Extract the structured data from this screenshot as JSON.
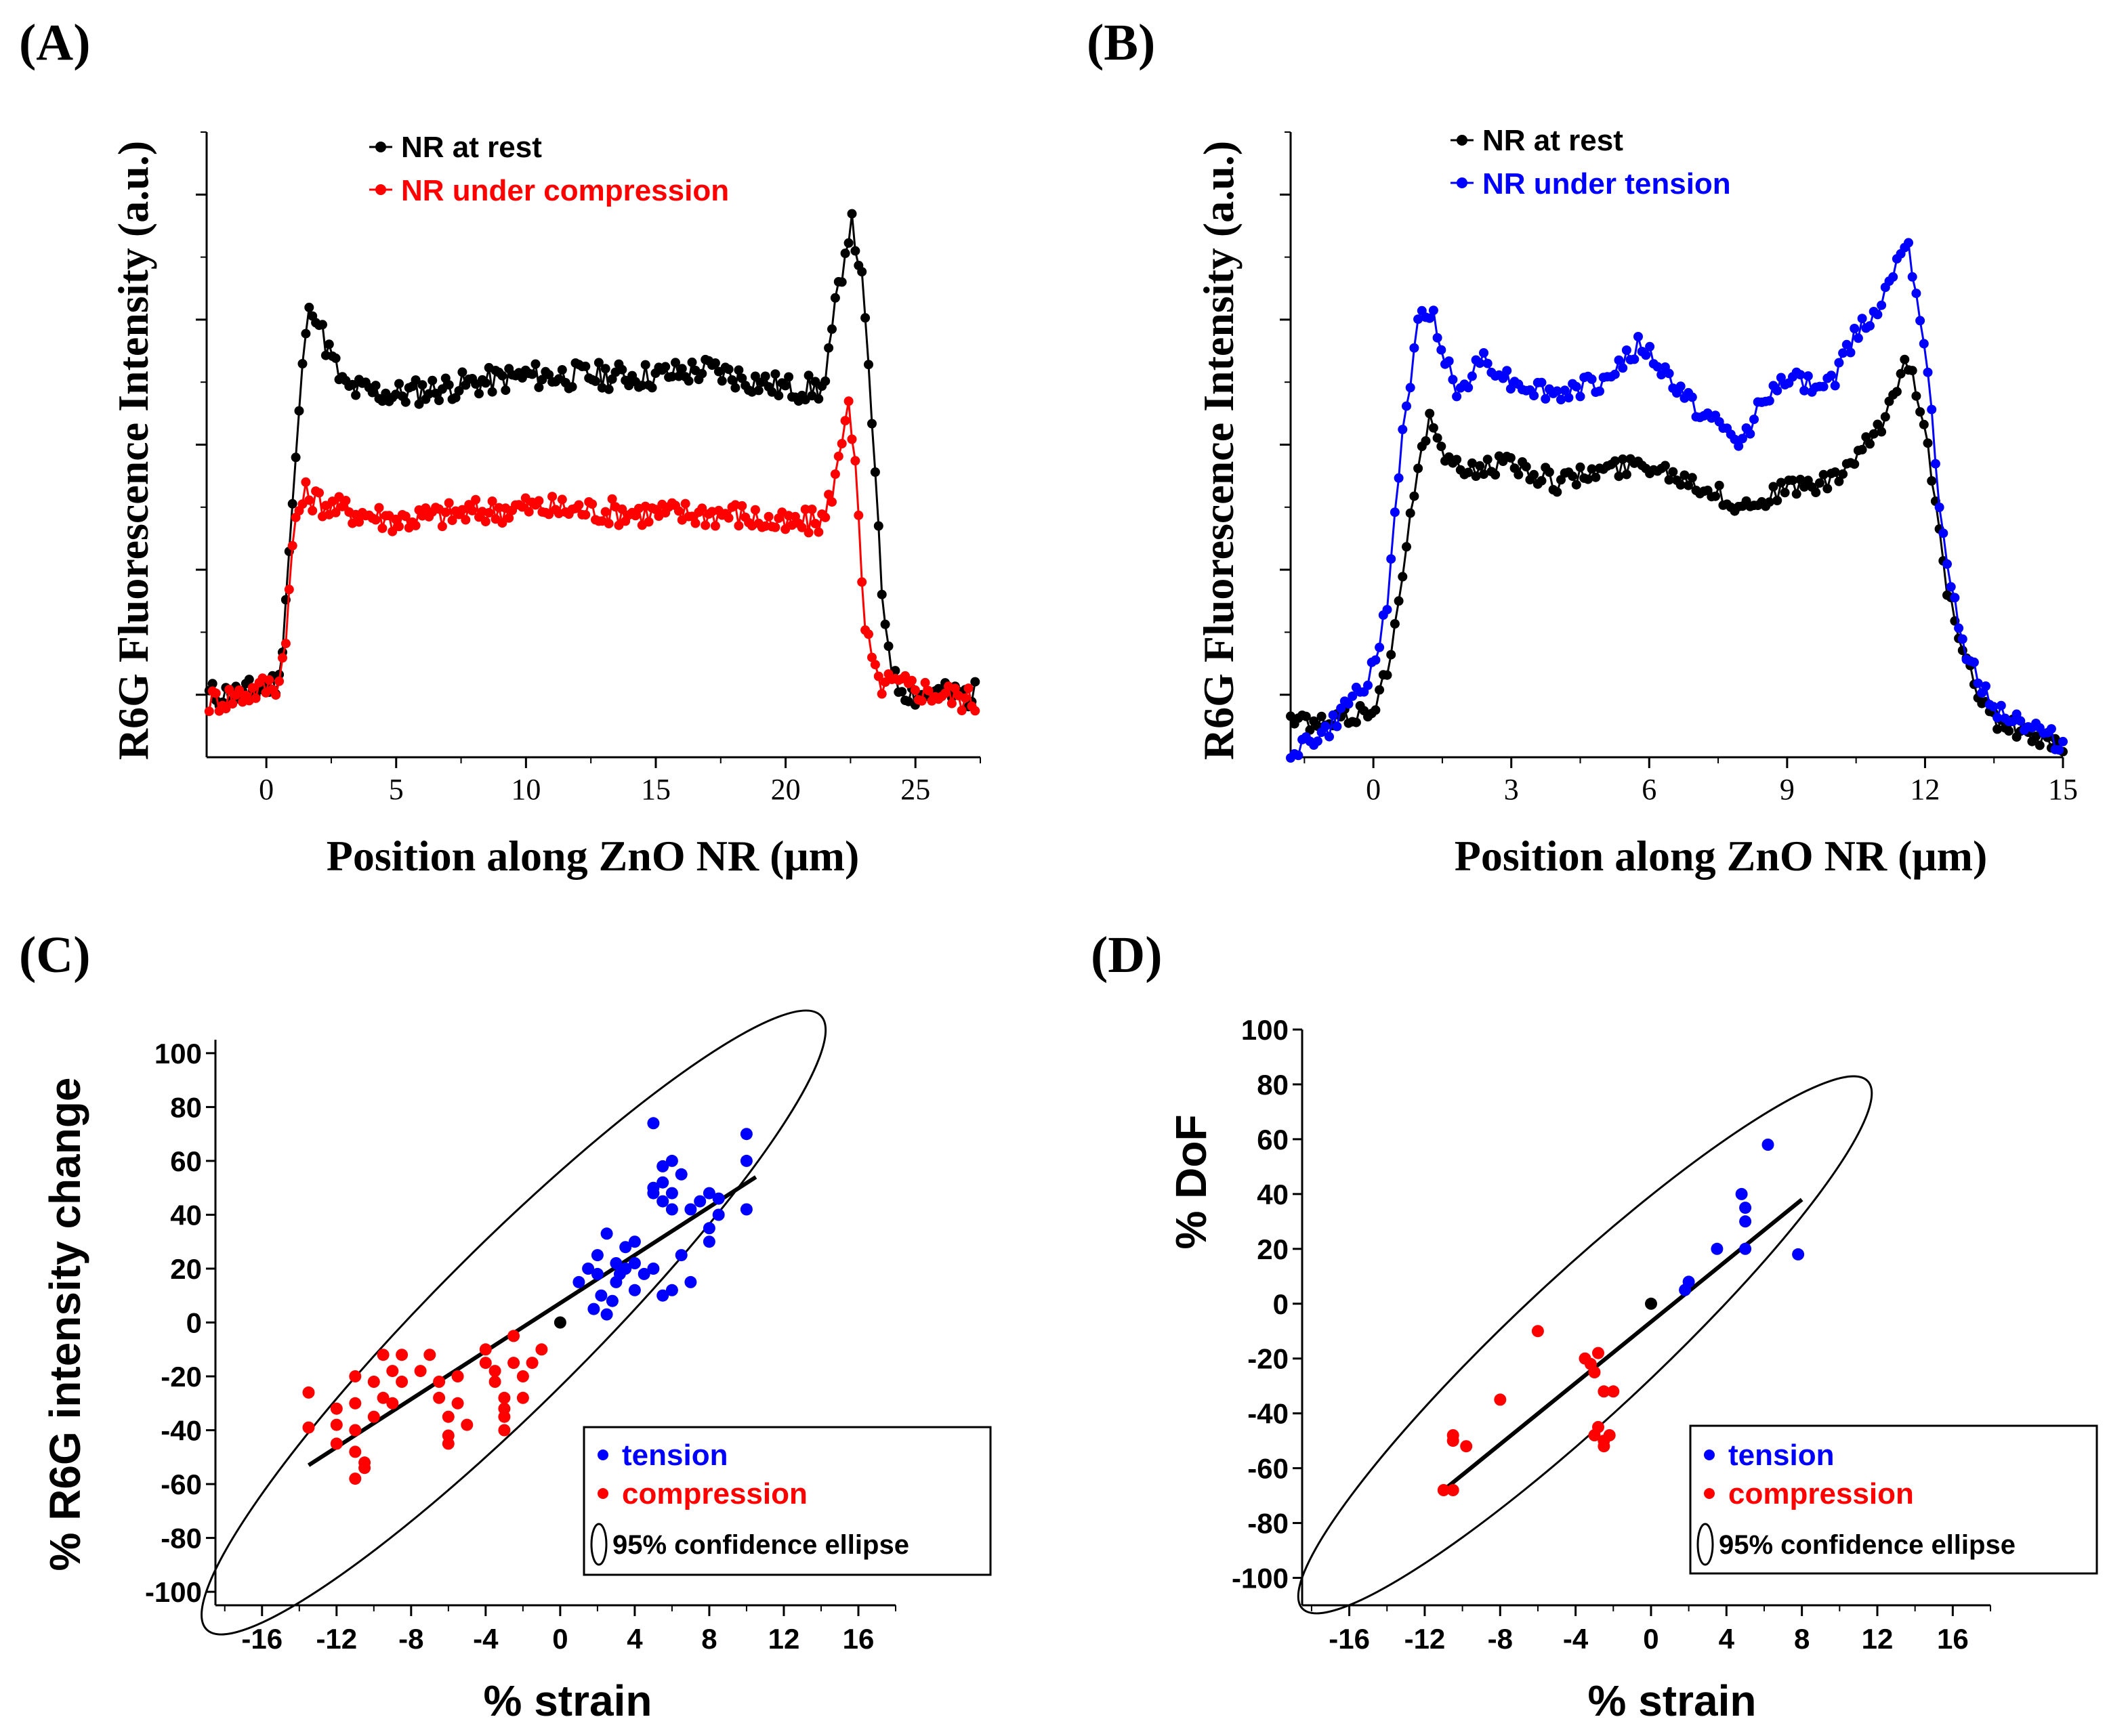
{
  "colors": {
    "black": "#000000",
    "red": "#ff0000",
    "blue": "#0000ff"
  },
  "chart_data": [
    {
      "panel": "(A)",
      "type": "line",
      "title": "",
      "xlabel": "Position along ZnO NR (μm)",
      "ylabel": "R6G Fluorescence Intensity (a.u.)",
      "xlim": [
        -2.3,
        27.5
      ],
      "ylim": [
        -0.5,
        4.5
      ],
      "xticks": [
        "0",
        "5",
        "10",
        "15",
        "20",
        "25"
      ],
      "legend_position": "top-left",
      "series": [
        {
          "name": "NR at rest",
          "color": "#000000",
          "anchors": [
            [
              -2.2,
              0.0
            ],
            [
              -1,
              0.0
            ],
            [
              0.5,
              0.1
            ],
            [
              1.0,
              1.5
            ],
            [
              1.5,
              2.9
            ],
            [
              1.8,
              3.15
            ],
            [
              2.2,
              2.85
            ],
            [
              3,
              2.45
            ],
            [
              5,
              2.4
            ],
            [
              10,
              2.55
            ],
            [
              15,
              2.55
            ],
            [
              17,
              2.6
            ],
            [
              20,
              2.45
            ],
            [
              21.5,
              2.45
            ],
            [
              22.0,
              3.2
            ],
            [
              22.5,
              3.8
            ],
            [
              22.9,
              3.4
            ],
            [
              23.3,
              2.3
            ],
            [
              23.7,
              0.8
            ],
            [
              24.2,
              0.1
            ],
            [
              25,
              0.0
            ],
            [
              27.3,
              0.0
            ]
          ]
        },
        {
          "name": "NR under compression",
          "color": "#ff0000",
          "anchors": [
            [
              -2.2,
              -0.05
            ],
            [
              -1,
              0.0
            ],
            [
              0.5,
              0.1
            ],
            [
              0.8,
              0.6
            ],
            [
              1.1,
              1.4
            ],
            [
              1.5,
              1.6
            ],
            [
              2.5,
              1.5
            ],
            [
              5,
              1.4
            ],
            [
              10,
              1.5
            ],
            [
              15,
              1.45
            ],
            [
              18,
              1.45
            ],
            [
              20,
              1.35
            ],
            [
              21.5,
              1.4
            ],
            [
              22.1,
              1.9
            ],
            [
              22.4,
              2.45
            ],
            [
              22.7,
              1.8
            ],
            [
              23.0,
              0.6
            ],
            [
              23.5,
              0.1
            ],
            [
              25,
              0.05
            ],
            [
              27.3,
              -0.05
            ]
          ]
        }
      ]
    },
    {
      "panel": "(B)",
      "type": "line",
      "title": "",
      "xlabel": "Position along ZnO NR (μm)",
      "ylabel": "R6G Fluorescence Intensity (a.u.)",
      "xlim": [
        -1.8,
        15
      ],
      "ylim": [
        -0.5,
        4.5
      ],
      "xticks": [
        "0",
        "3",
        "6",
        "9",
        "12",
        "15"
      ],
      "legend_position": "top-left",
      "series": [
        {
          "name": "NR at rest",
          "color": "#000000",
          "anchors": [
            [
              -1.8,
              -0.2
            ],
            [
              -1,
              -0.25
            ],
            [
              0,
              -0.1
            ],
            [
              0.4,
              0.3
            ],
            [
              0.8,
              1.5
            ],
            [
              1.2,
              2.2
            ],
            [
              1.7,
              1.8
            ],
            [
              3,
              1.85
            ],
            [
              4,
              1.7
            ],
            [
              5,
              1.8
            ],
            [
              6,
              1.85
            ],
            [
              7,
              1.7
            ],
            [
              8,
              1.5
            ],
            [
              9,
              1.65
            ],
            [
              10,
              1.7
            ],
            [
              11,
              2.1
            ],
            [
              11.6,
              2.7
            ],
            [
              12.0,
              2.2
            ],
            [
              12.4,
              1.0
            ],
            [
              12.8,
              0.3
            ],
            [
              13.5,
              -0.2
            ],
            [
              15,
              -0.45
            ]
          ]
        },
        {
          "name": "NR under tension",
          "color": "#0000ff",
          "anchors": [
            [
              -1.8,
              -0.45
            ],
            [
              -1,
              -0.3
            ],
            [
              0,
              0.2
            ],
            [
              0.3,
              0.7
            ],
            [
              0.6,
              2.0
            ],
            [
              1.0,
              3.0
            ],
            [
              1.3,
              3.05
            ],
            [
              1.8,
              2.4
            ],
            [
              2.4,
              2.7
            ],
            [
              3,
              2.5
            ],
            [
              4,
              2.4
            ],
            [
              5,
              2.5
            ],
            [
              5.8,
              2.8
            ],
            [
              6.5,
              2.5
            ],
            [
              7,
              2.3
            ],
            [
              8,
              2.0
            ],
            [
              8.5,
              2.4
            ],
            [
              9,
              2.5
            ],
            [
              10,
              2.5
            ],
            [
              10.5,
              2.9
            ],
            [
              11,
              3.1
            ],
            [
              11.6,
              3.7
            ],
            [
              12.0,
              2.8
            ],
            [
              12.4,
              1.2
            ],
            [
              12.8,
              0.4
            ],
            [
              13.5,
              -0.1
            ],
            [
              15,
              -0.4
            ]
          ]
        }
      ]
    },
    {
      "panel": "(C)",
      "type": "scatter",
      "title": "",
      "xlabel": "% strain",
      "ylabel": "% R6G intensity change",
      "xlim": [
        -18.5,
        18
      ],
      "ylim": [
        -105,
        105
      ],
      "xticks": [
        "-16",
        "-12",
        "-8",
        "-4",
        "0",
        "4",
        "8",
        "12",
        "16"
      ],
      "yticks": [
        "100",
        "80",
        "60",
        "40",
        "20",
        "0",
        "-20",
        "-40",
        "-60",
        "-80",
        "-100"
      ],
      "legend_position": "bottom-right",
      "legend": [
        "tension",
        "compression",
        "95% confidence ellipse"
      ],
      "fit_line": [
        [
          -13.5,
          -53
        ],
        [
          10.5,
          54
        ]
      ],
      "ellipse": {
        "center": [
          -2.5,
          0
        ],
        "semi_major_strain": 23.3,
        "semi_minor_strain": 4.2,
        "angle_deg": 78
      },
      "series": [
        {
          "name": "origin",
          "color": "#000000",
          "points": [
            [
              0,
              0
            ]
          ]
        },
        {
          "name": "tension",
          "color": "#0000ff",
          "points": [
            [
              5,
              74
            ],
            [
              1,
              15
            ],
            [
              1.5,
              20
            ],
            [
              2,
              25
            ],
            [
              2,
              18
            ],
            [
              2.2,
              10
            ],
            [
              2.5,
              33
            ],
            [
              2.5,
              3
            ],
            [
              3,
              15
            ],
            [
              3,
              22
            ],
            [
              3.5,
              28
            ],
            [
              3.5,
              20
            ],
            [
              4,
              30
            ],
            [
              4,
              12
            ],
            [
              4,
              22
            ],
            [
              4.5,
              18
            ],
            [
              5,
              48
            ],
            [
              5,
              50
            ],
            [
              5,
              20
            ],
            [
              5.5,
              58
            ],
            [
              5.5,
              52
            ],
            [
              5.5,
              45
            ],
            [
              5.5,
              10
            ],
            [
              6,
              60
            ],
            [
              6,
              48
            ],
            [
              6,
              42
            ],
            [
              6,
              12
            ],
            [
              6.5,
              55
            ],
            [
              6.5,
              25
            ],
            [
              7,
              15
            ],
            [
              7,
              42
            ],
            [
              7.5,
              45
            ],
            [
              8,
              48
            ],
            [
              8,
              35
            ],
            [
              8,
              30
            ],
            [
              8.5,
              46
            ],
            [
              8.5,
              40
            ],
            [
              10,
              70
            ],
            [
              10,
              60
            ],
            [
              10,
              42
            ],
            [
              2.8,
              8
            ],
            [
              3.2,
              18
            ],
            [
              1.8,
              5
            ]
          ]
        },
        {
          "name": "compression",
          "color": "#ff0000",
          "points": [
            [
              -13.5,
              -26
            ],
            [
              -13.5,
              -39
            ],
            [
              -12,
              -32
            ],
            [
              -12,
              -38
            ],
            [
              -12,
              -45
            ],
            [
              -11,
              -20
            ],
            [
              -11,
              -30
            ],
            [
              -11,
              -40
            ],
            [
              -11,
              -48
            ],
            [
              -11,
              -58
            ],
            [
              -10.5,
              -52
            ],
            [
              -10.5,
              -54
            ],
            [
              -10,
              -22
            ],
            [
              -10,
              -35
            ],
            [
              -9.5,
              -12
            ],
            [
              -9.5,
              -28
            ],
            [
              -9,
              -18
            ],
            [
              -9,
              -30
            ],
            [
              -8.5,
              -12
            ],
            [
              -8.5,
              -22
            ],
            [
              -7.5,
              -18
            ],
            [
              -7,
              -12
            ],
            [
              -6.5,
              -22
            ],
            [
              -6.5,
              -28
            ],
            [
              -6,
              -35
            ],
            [
              -6,
              -42
            ],
            [
              -6,
              -45
            ],
            [
              -5.5,
              -20
            ],
            [
              -5.5,
              -30
            ],
            [
              -5,
              -38
            ],
            [
              -4,
              -10
            ],
            [
              -4,
              -15
            ],
            [
              -3.5,
              -18
            ],
            [
              -3.5,
              -22
            ],
            [
              -3,
              -28
            ],
            [
              -3,
              -32
            ],
            [
              -3,
              -35
            ],
            [
              -3,
              -40
            ],
            [
              -2.5,
              -5
            ],
            [
              -2.5,
              -15
            ],
            [
              -2,
              -20
            ],
            [
              -2,
              -28
            ],
            [
              -1.5,
              -15
            ],
            [
              -1,
              -10
            ]
          ]
        }
      ]
    },
    {
      "panel": "(D)",
      "type": "scatter",
      "title": "",
      "xlabel": "% strain",
      "ylabel": "% DoF",
      "xlim": [
        -18.5,
        18
      ],
      "ylim": [
        -110,
        100
      ],
      "xticks": [
        "-16",
        "-12",
        "-8",
        "-4",
        "0",
        "4",
        "8",
        "12",
        "16"
      ],
      "yticks": [
        "100",
        "80",
        "60",
        "40",
        "20",
        "0",
        "-20",
        "-40",
        "-60",
        "-80",
        "-100"
      ],
      "legend_position": "bottom-right",
      "legend": [
        "tension",
        "compression",
        "95% confidence ellipse"
      ],
      "fit_line": [
        [
          -11,
          -68
        ],
        [
          8,
          38
        ]
      ],
      "ellipse": {
        "center": [
          -3.5,
          -15
        ],
        "semi_major_strain": 20.5,
        "semi_minor_strain": 3.7,
        "angle_deg": 80
      },
      "series": [
        {
          "name": "origin",
          "color": "#000000",
          "points": [
            [
              0,
              0
            ]
          ]
        },
        {
          "name": "tension",
          "color": "#0000ff",
          "points": [
            [
              1.8,
              5
            ],
            [
              2,
              8
            ],
            [
              3.5,
              20
            ],
            [
              4.8,
              40
            ],
            [
              5,
              35
            ],
            [
              5,
              30
            ],
            [
              5,
              20
            ],
            [
              6.2,
              58
            ],
            [
              7.8,
              18
            ]
          ]
        },
        {
          "name": "compression",
          "color": "#ff0000",
          "points": [
            [
              -11,
              -68
            ],
            [
              -10.5,
              -68
            ],
            [
              -10.5,
              -50
            ],
            [
              -10.5,
              -48
            ],
            [
              -9.8,
              -52
            ],
            [
              -8,
              -35
            ],
            [
              -6,
              -10
            ],
            [
              -3.5,
              -20
            ],
            [
              -3.2,
              -22
            ],
            [
              -3,
              -25
            ],
            [
              -2.8,
              -45
            ],
            [
              -2.8,
              -18
            ],
            [
              -2.5,
              -52
            ],
            [
              -2.5,
              -50
            ],
            [
              -2.5,
              -32
            ],
            [
              -2.2,
              -48
            ],
            [
              -2,
              -32
            ],
            [
              -3,
              -48
            ]
          ]
        }
      ]
    }
  ]
}
